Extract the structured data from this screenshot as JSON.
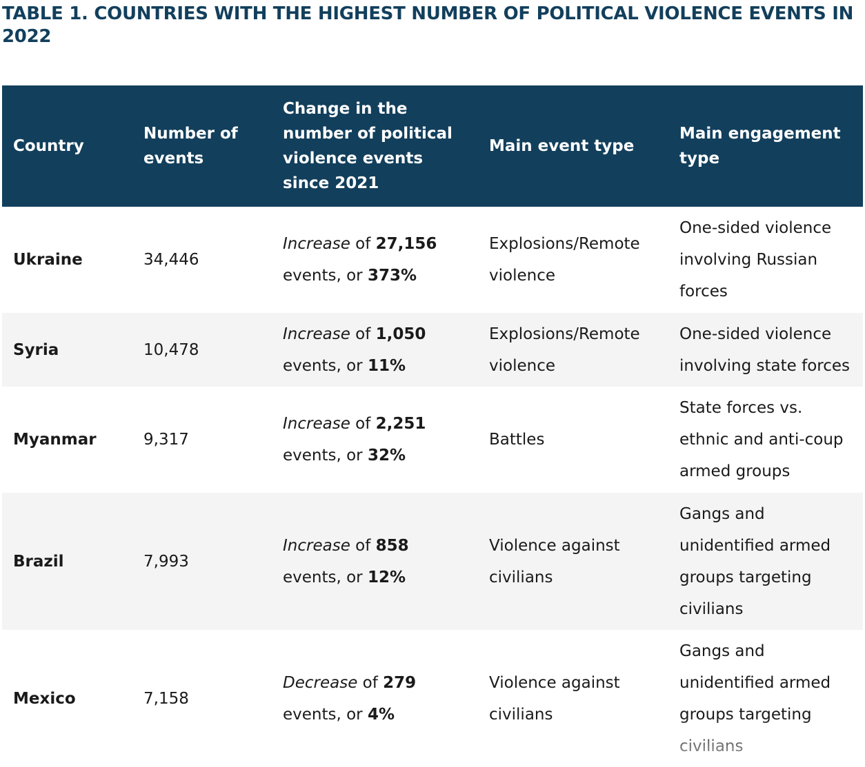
{
  "title": "TABLE 1. COUNTRIES WITH THE HIGHEST NUMBER OF POLITICAL VIOLENCE EVENTS IN 2022",
  "headers": [
    "Country",
    "Number of events",
    "Change in the number of political violence events since 2021",
    "Main event type",
    "Main engagement type"
  ],
  "rows": [
    {
      "country": "Ukraine",
      "events": "34,446",
      "change": {
        "direction": "Increase",
        "of": " of ",
        "amount": "27,156",
        "mid": " events, or ",
        "percent": "373%"
      },
      "event_type": "Explosions/Remote violence",
      "engagement_type": "One-sided violence involving Russian forces"
    },
    {
      "country": "Syria",
      "events": "10,478",
      "change": {
        "direction": "Increase",
        "of": " of ",
        "amount": "1,050",
        "mid": " events, or ",
        "percent": "11%"
      },
      "event_type": "Explosions/Remote violence",
      "engagement_type": "One-sided violence involving state forces"
    },
    {
      "country": "Myanmar",
      "events": "9,317",
      "change": {
        "direction": "Increase",
        "of": " of ",
        "amount": "2,251",
        "mid": " events, or ",
        "percent": "32%"
      },
      "event_type": "Battles",
      "engagement_type": "State forces vs. ethnic and anti-coup armed groups"
    },
    {
      "country": "Brazil",
      "events": "7,993",
      "change": {
        "direction": "Increase",
        "of": " of ",
        "amount": "858",
        "mid": " events, or ",
        "percent": "12%"
      },
      "event_type": "Violence against civilians",
      "engagement_type": "Gangs and unidentified armed groups targeting civilians"
    },
    {
      "country": "Mexico",
      "events": "7,158",
      "change": {
        "direction": "Decrease",
        "of": " of ",
        "amount": "279",
        "mid": " events, or ",
        "percent": "4%"
      },
      "event_type": "Violence against civilians",
      "engagement_type": "Gangs and unidentified armed groups targeting civilians"
    }
  ]
}
